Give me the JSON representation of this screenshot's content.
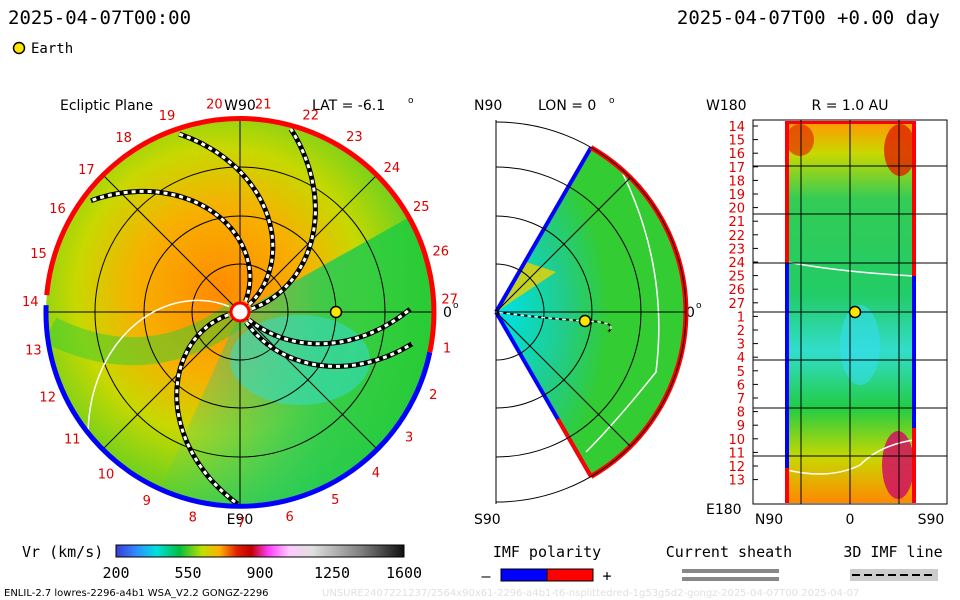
{
  "header": {
    "left_time": "2025-04-07T00:00",
    "right_time": "2025-04-07T00 +0.00 day",
    "earth_legend": "Earth"
  },
  "colors": {
    "earth": "#ffe600",
    "polarity_negative": "#0000ff",
    "polarity_positive": "#ff0000",
    "sheath": "#888888"
  },
  "chart_data": [
    {
      "type": "heatmap",
      "panel": "ecliptic",
      "title": "Ecliptic Plane",
      "lat_label": "LAT = -6.1",
      "top_label": "W90",
      "bottom_label": "E90",
      "right_label": "0",
      "carrington_ticks": [
        "20",
        "21",
        "22",
        "23",
        "24",
        "25",
        "26",
        "27",
        "1",
        "2",
        "3",
        "4",
        "5",
        "6",
        "7",
        "8",
        "9",
        "10",
        "11",
        "12",
        "13",
        "14",
        "15",
        "16",
        "17",
        "18",
        "19"
      ],
      "earth": {
        "r_au": 0.95,
        "angle_deg": 0
      }
    },
    {
      "type": "heatmap",
      "panel": "meridional",
      "title": "LON = 0",
      "top_label": "N90",
      "bottom_label": "S90",
      "right_label": "0",
      "earth": {
        "r_au": 0.95,
        "lat_deg": -6.1
      }
    },
    {
      "type": "heatmap",
      "panel": "shell",
      "title": "R = 1.0 AU",
      "top_left_label": "W180",
      "bottom_left_label": "E180",
      "y_ticks": [
        "14",
        "15",
        "16",
        "17",
        "18",
        "19",
        "20",
        "21",
        "22",
        "23",
        "24",
        "25",
        "26",
        "27",
        "1",
        "2",
        "3",
        "4",
        "5",
        "6",
        "7",
        "8",
        "9",
        "10",
        "11",
        "12",
        "13"
      ],
      "x_ticks": [
        "N90",
        "0",
        "S90"
      ],
      "earth": {
        "lat_deg": -6.1,
        "row": 13.5
      }
    }
  ],
  "colorbar": {
    "label": "Vr (km/s)",
    "ticks": [
      "200",
      "550",
      "900",
      "1250",
      "1600"
    ],
    "range": [
      200,
      1600
    ]
  },
  "imf_legend": {
    "title": "IMF polarity",
    "minus": "–",
    "plus": "+"
  },
  "sheath_legend": {
    "title": "Current sheath"
  },
  "imf_line_legend": {
    "title": "3D IMF line"
  },
  "footer": {
    "left": "ENLIL-2.7 lowres-2296-a4b1 WSA_V2.2 GONGZ-2296",
    "right": "UNSURE2407221237/2564x90x61-2296-a4b1-t6-nsplittedred-1g53g5d2-gongz-2025-04-07T00   2025-04-07"
  }
}
